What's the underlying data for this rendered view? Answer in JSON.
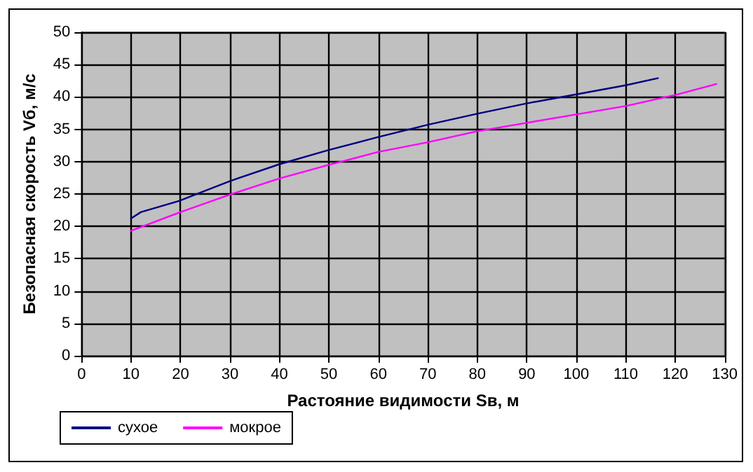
{
  "chart_data": {
    "type": "line",
    "xlabel": "Растояние видимости Sв, м",
    "ylabel": "Безопасная скорость Vб, м/с",
    "xlim": [
      0,
      130
    ],
    "xticks": [
      0,
      10,
      20,
      30,
      40,
      50,
      60,
      70,
      80,
      90,
      100,
      110,
      120,
      130
    ],
    "ylim": [
      0,
      50
    ],
    "yticks": [
      0,
      5,
      10,
      15,
      20,
      25,
      30,
      35,
      40,
      45,
      50
    ],
    "grid": true,
    "legend": "bottom left",
    "marker": "none",
    "line_style": "solid",
    "series": [
      {
        "name": "сухое",
        "color": "#000080",
        "x": [
          10,
          12,
          20,
          30,
          40,
          50,
          60,
          70,
          80,
          90,
          100,
          110,
          116.5
        ],
        "values": [
          21.2,
          22.2,
          24,
          27,
          29.6,
          31.8,
          33.8,
          35.7,
          37.4,
          39,
          40.4,
          41.8,
          42.9
        ]
      },
      {
        "name": "мокрое",
        "color": "#ff00ff",
        "x": [
          10,
          20,
          30,
          40,
          50,
          60,
          70,
          80,
          90,
          100,
          110,
          120,
          128.3
        ],
        "values": [
          19.3,
          22.2,
          24.9,
          27.4,
          29.5,
          31.5,
          33,
          34.7,
          36,
          37.3,
          38.6,
          40.3,
          42
        ]
      }
    ]
  }
}
